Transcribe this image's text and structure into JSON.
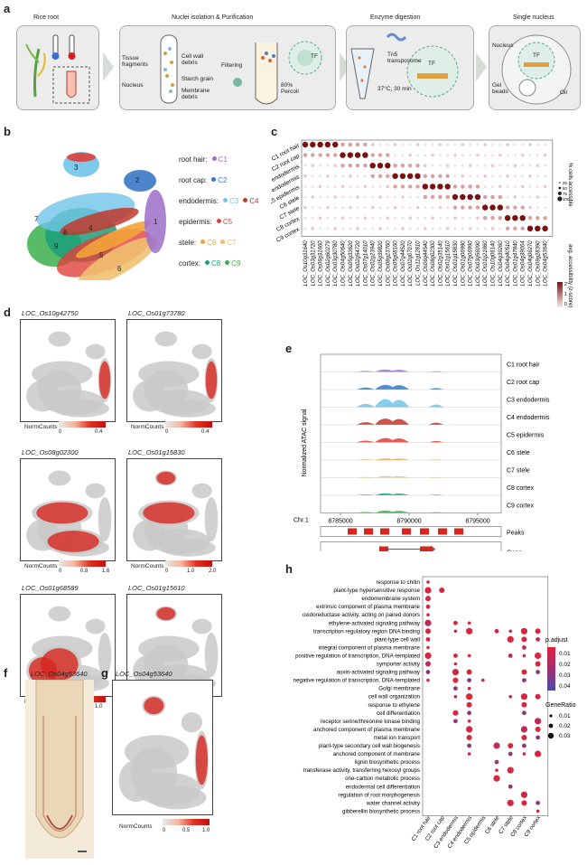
{
  "panel_a": {
    "label": "a",
    "steps": [
      "Rice root",
      "Nuclei isolation & Purification",
      "Enzyme digestion",
      "Single nucleus"
    ],
    "annotations": {
      "tissue": "Tissue fragments",
      "cell_wall": "Cell wall debris",
      "starch": "Starch grain",
      "nucleus": "Nucleus",
      "membrane": "Membrane debris",
      "filtering": "Filtering",
      "percoll": "80% Percoll",
      "tf": "TF",
      "tn5": "Tn5 transposome",
      "temp": "37°C, 30 min",
      "nucleus2": "Nucleus",
      "gel": "Gel beads",
      "oil": "Oil"
    }
  },
  "panel_b": {
    "label": "b",
    "legend": [
      {
        "group": "root hair:",
        "clusters": [
          {
            "name": "C1",
            "color": "#9b6fc7"
          }
        ]
      },
      {
        "group": "root cap:",
        "clusters": [
          {
            "name": "C2",
            "color": "#3a78c4"
          }
        ]
      },
      {
        "group": "endodermis:",
        "clusters": [
          {
            "name": "C3",
            "color": "#6fc4e8"
          },
          {
            "name": "C4",
            "color": "#c0392b"
          }
        ]
      },
      {
        "group": "epidermis:",
        "clusters": [
          {
            "name": "C5",
            "color": "#e0403a"
          }
        ]
      },
      {
        "group": "stele:",
        "clusters": [
          {
            "name": "C6",
            "color": "#f3a33a"
          },
          {
            "name": "C7",
            "color": "#f0c070"
          }
        ]
      },
      {
        "group": "cortex:",
        "clusters": [
          {
            "name": "C8",
            "color": "#1a9f7a"
          },
          {
            "name": "C9",
            "color": "#3ab04a"
          }
        ]
      }
    ],
    "cluster_numbers": [
      "1",
      "2",
      "3",
      "4",
      "5",
      "6",
      "7",
      "8",
      "9"
    ]
  },
  "panel_c": {
    "label": "c",
    "rows": [
      "C1 root hair",
      "C2 root cap",
      "C3 endodermis",
      "C4 endodermis",
      "C5 epidermis",
      "C6 stele",
      "C7 stele",
      "C8 cortex",
      "C9 cortex"
    ],
    "genes": [
      "LOC_Os10g31640",
      "LOC_Os03g31720",
      "LOC_Os06g31660",
      "LOC_Os02g60279",
      "LOC_Os03g30780",
      "LOC_Os04g50640",
      "LOC_Os05g33620",
      "LOC_Os02g54720",
      "LOC_Os07g14010",
      "LOC_Os02g23940",
      "LOC_Os05g39820",
      "LOC_Os08g23760",
      "LOC_Os05g08160",
      "LOC_Os07g44520",
      "LOC_Os02g07070",
      "LOC_Os11g12810",
      "LOC_Os06g44540",
      "LOC_Os08g02300",
      "LOC_Os02g35140",
      "LOC_Os01g15610",
      "LOC_Os01g15830",
      "LOC_Os01g06990",
      "LOC_Os07g06990",
      "LOC_Os03g56090",
      "LOC_Os01g21860",
      "LOC_Os10g06140",
      "LOC_Os04g39260",
      "LOC_Os04g40510",
      "LOC_Os01g47840",
      "LOC_Os04g39064",
      "LOC_Os04g06270",
      "LOC_Os09g28390",
      "LOC_Os04g53640"
    ],
    "legend_pct": "% cells accessible",
    "legend_pct_vals": [
      "25",
      "50",
      "75",
      "100"
    ],
    "legend_acc": "avg. accessibility (z-score)",
    "legend_acc_vals": [
      "2",
      "1",
      "0"
    ]
  },
  "panel_d": {
    "label": "d",
    "maps": [
      {
        "gene": "LOC_Os10g42750",
        "ticks": [
          "0",
          "0.4"
        ]
      },
      {
        "gene": "LOC_Os01g73780",
        "ticks": [
          "0",
          "0.4"
        ]
      },
      {
        "gene": "LOC_Os08g02300",
        "ticks": [
          "0",
          "0.8",
          "1.6"
        ]
      },
      {
        "gene": "LOC_Os01g15830",
        "ticks": [
          "0",
          "1.0",
          "2.0"
        ]
      },
      {
        "gene": "LOC_Os01g68589",
        "ticks": [
          "0",
          "1.0"
        ]
      },
      {
        "gene": "LOC_Os01g15610",
        "ticks": [
          "0",
          "1.0"
        ]
      }
    ],
    "colorbar_label": "NormCounts"
  },
  "panel_e": {
    "label": "e",
    "tracks": [
      "C1 root hair",
      "C2 root cap",
      "C3 endodermis",
      "C4 endodermis",
      "C5 epidermis",
      "C6 stele",
      "C7 stele",
      "C8 cortex",
      "C9 cortex"
    ],
    "ylabel": "Normalized ATAC signal",
    "chr": "Chr.1",
    "positions": [
      "8785000",
      "8790000",
      "8795000"
    ],
    "peaks_label": "Peaks",
    "gene_label": "Gene",
    "gene_name": "LOC_Os01g15610"
  },
  "panel_f": {
    "label": "f",
    "gene": "LOC_Os04g53640"
  },
  "panel_g": {
    "label": "g",
    "gene": "LOC_Os04g53640",
    "colorbar_label": "NormCounts",
    "ticks": [
      "0",
      "0.5",
      "1.0"
    ]
  },
  "panel_h": {
    "label": "h",
    "terms": [
      "response to chitin",
      "plant-type hypersensitive response",
      "endomembrane system",
      "extrinsic component of plasma membrane",
      "oxidoreductase activity, acting on paired donors",
      "ethylene-activated signaling pathway",
      "transcription regulatory region DNA binding",
      "plant-type cell wall",
      "integral component of plasma membrane",
      "positive regulation of transcription, DNA-templated",
      "symporter activity",
      "auxin-activated signaling pathway",
      "negative regulation of transcription, DNA-templated",
      "Golgi membrane",
      "cell wall organization",
      "response to ethylene",
      "cell differentiation",
      "receptor serine/threonine kinase binding",
      "anchored component of plasma membrane",
      "metal ion transport",
      "plant-type secondary cell wall biogenesis",
      "anchored component of membrane",
      "lignin biosynthetic process",
      "transferase activity, transferring hexosyl groups",
      "one-carbon metabolic process",
      "endodermal cell differentiation",
      "regulation of root morphogenesis",
      "water channel activity",
      "gibberellin biosynthetic process"
    ],
    "clusters": [
      "C1 root hair",
      "C2 root cap",
      "C3 endodermis",
      "C4 endodermis",
      "C5 epidermis",
      "C6 stele",
      "C7 stele",
      "C8 cortex",
      "C9 cortex"
    ],
    "padj_title": "p.adjust",
    "padj_ticks": [
      "0.01",
      "0.02",
      "0.03",
      "0.04"
    ],
    "ratio_title": "GeneRatio",
    "ratio_ticks": [
      "0.01",
      "0.02",
      "0.03"
    ]
  },
  "colors": {
    "high": "#d7261e",
    "low": "#e6e6e6",
    "bar_c": "#7a1010"
  }
}
